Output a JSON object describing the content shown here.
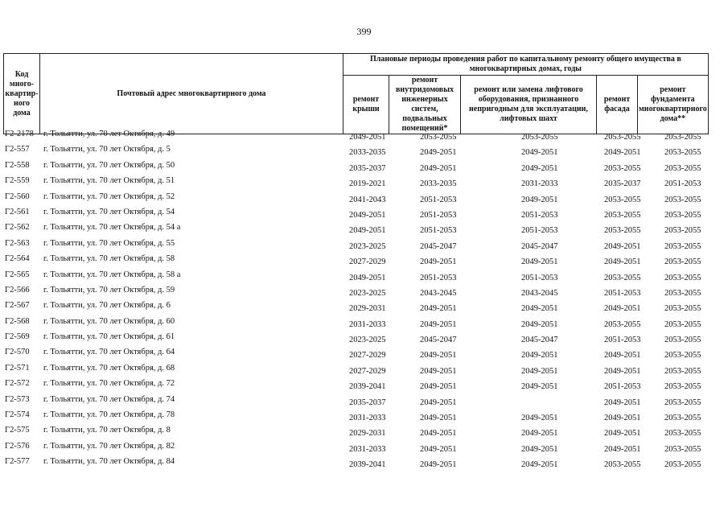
{
  "page_number": "399",
  "header": {
    "code": "Код много-квартир-ного дома",
    "address": "Почтовый адрес многоквартирного дома",
    "periods": "Плановые периоды проведения работ по капитальному ремонту общего имущества в многоквартирных домах, годы",
    "columns": [
      "ремонт крыши",
      "ремонт внутридомовых инженерных систем, подвальных помещений*",
      "ремонт или замена лифтового оборудования, признанного непригодным для эксплуатации, лифтовых шахт",
      "ремонт фасада",
      "ремонт фундамента многоквартирного дома**"
    ]
  },
  "rows": [
    {
      "code": "Г2-2178",
      "address": "г. Тольятти, ул. 70 лет Октября, д. 49",
      "v": [
        "2049-2051",
        "2053-2055",
        "2053-2055",
        "2053-2055",
        "2053-2055"
      ]
    },
    {
      "code": "Г2-557",
      "address": "г. Тольятти, ул. 70 лет Октября, д. 5",
      "v": [
        "2033-2035",
        "2049-2051",
        "2049-2051",
        "2049-2051",
        "2053-2055"
      ]
    },
    {
      "code": "Г2-558",
      "address": "г. Тольятти, ул. 70 лет Октября, д. 50",
      "v": [
        "2035-2037",
        "2049-2051",
        "2049-2051",
        "2053-2055",
        "2053-2055"
      ]
    },
    {
      "code": "Г2-559",
      "address": "г. Тольятти, ул. 70 лет Октября, д. 51",
      "v": [
        "2019-2021",
        "2033-2035",
        "2031-2033",
        "2035-2037",
        "2051-2053"
      ]
    },
    {
      "code": "Г2-560",
      "address": "г. Тольятти, ул. 70 лет Октября, д. 52",
      "v": [
        "2041-2043",
        "2051-2053",
        "2049-2051",
        "2053-2055",
        "2053-2055"
      ]
    },
    {
      "code": "Г2-561",
      "address": "г. Тольятти, ул. 70 лет Октября, д. 54",
      "v": [
        "2049-2051",
        "2051-2053",
        "2051-2053",
        "2053-2055",
        "2053-2055"
      ]
    },
    {
      "code": "Г2-562",
      "address": "г. Тольятти, ул. 70 лет Октября, д. 54 а",
      "v": [
        "2049-2051",
        "2051-2053",
        "2051-2053",
        "2053-2055",
        "2053-2055"
      ]
    },
    {
      "code": "Г2-563",
      "address": "г. Тольятти, ул. 70 лет Октября, д. 55",
      "v": [
        "2023-2025",
        "2045-2047",
        "2045-2047",
        "2049-2051",
        "2053-2055"
      ]
    },
    {
      "code": "Г2-564",
      "address": "г. Тольятти, ул. 70 лет Октября, д. 58",
      "v": [
        "2027-2029",
        "2049-2051",
        "2049-2051",
        "2049-2051",
        "2053-2055"
      ]
    },
    {
      "code": "Г2-565",
      "address": "г. Тольятти, ул. 70 лет Октября, д. 58 а",
      "v": [
        "2049-2051",
        "2051-2053",
        "2051-2053",
        "2053-2055",
        "2053-2055"
      ]
    },
    {
      "code": "Г2-566",
      "address": "г. Тольятти, ул. 70 лет Октября, д. 59",
      "v": [
        "2023-2025",
        "2043-2045",
        "2043-2045",
        "2051-2053",
        "2053-2055"
      ]
    },
    {
      "code": "Г2-567",
      "address": "г. Тольятти, ул. 70 лет Октября, д. 6",
      "v": [
        "2029-2031",
        "2049-2051",
        "2049-2051",
        "2049-2051",
        "2053-2055"
      ]
    },
    {
      "code": "Г2-568",
      "address": "г. Тольятти, ул. 70 лет Октября, д. 60",
      "v": [
        "2031-2033",
        "2049-2051",
        "2049-2051",
        "2053-2055",
        "2053-2055"
      ]
    },
    {
      "code": "Г2-569",
      "address": "г. Тольятти, ул. 70 лет Октября, д. 61",
      "v": [
        "2023-2025",
        "2045-2047",
        "2045-2047",
        "2051-2053",
        "2053-2055"
      ]
    },
    {
      "code": "Г2-570",
      "address": "г. Тольятти, ул. 70 лет Октября, д. 64",
      "v": [
        "2027-2029",
        "2049-2051",
        "2049-2051",
        "2049-2051",
        "2053-2055"
      ]
    },
    {
      "code": "Г2-571",
      "address": "г. Тольятти, ул. 70 лет Октября, д. 68",
      "v": [
        "2027-2029",
        "2049-2051",
        "2049-2051",
        "2049-2051",
        "2053-2055"
      ]
    },
    {
      "code": "Г2-572",
      "address": "г. Тольятти, ул. 70 лет Октября, д. 72",
      "v": [
        "2039-2041",
        "2049-2051",
        "2049-2051",
        "2051-2053",
        "2053-2055"
      ]
    },
    {
      "code": "Г2-573",
      "address": "г. Тольятти, ул. 70 лет Октября, д. 74",
      "v": [
        "2035-2037",
        "2049-2051",
        "",
        "2049-2051",
        "2053-2055"
      ]
    },
    {
      "code": "Г2-574",
      "address": "г. Тольятти, ул. 70 лет Октября, д. 78",
      "v": [
        "2031-2033",
        "2049-2051",
        "2049-2051",
        "2049-2051",
        "2053-2055"
      ]
    },
    {
      "code": "Г2-575",
      "address": "г. Тольятти, ул. 70 лет Октября, д. 8",
      "v": [
        "2029-2031",
        "2049-2051",
        "2049-2051",
        "2049-2051",
        "2053-2055"
      ]
    },
    {
      "code": "Г2-576",
      "address": "г. Тольятти, ул. 70 лет Октября, д. 82",
      "v": [
        "2031-2033",
        "2049-2051",
        "2049-2051",
        "2049-2051",
        "2053-2055"
      ]
    },
    {
      "code": "Г2-577",
      "address": "г. Тольятти, ул. 70 лет Октября, д. 84",
      "v": [
        "2039-2041",
        "2049-2051",
        "2049-2051",
        "2053-2055",
        "2053-2055"
      ]
    }
  ]
}
